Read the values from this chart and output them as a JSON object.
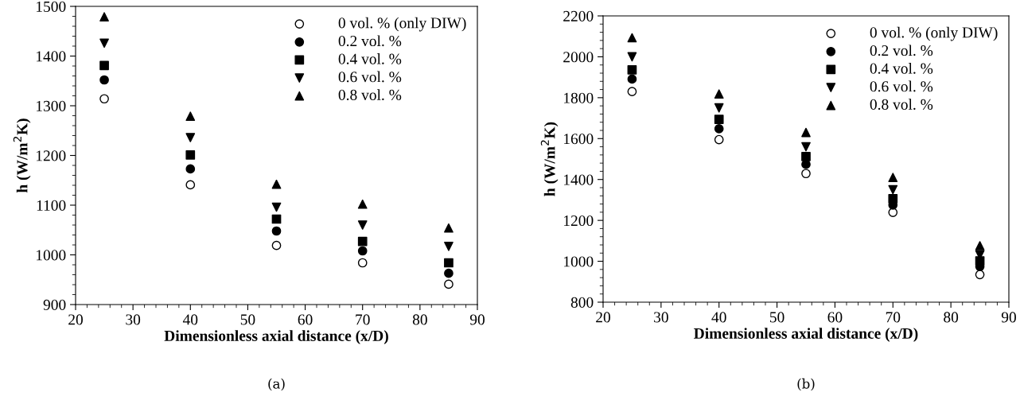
{
  "chart_data": [
    {
      "type": "scatter",
      "xlabel": "Dimensionless axial distance (x/D)",
      "ylabel": "h (W/m$^{2}$K)",
      "annotations": [
        "(a)"
      ],
      "x": [
        25,
        40,
        55,
        70,
        85
      ],
      "xlim": [
        20,
        90
      ],
      "xticks": [
        20,
        30,
        40,
        50,
        60,
        70,
        80,
        90
      ],
      "ylim": [
        900,
        1500
      ],
      "yticks": [
        900,
        1000,
        1100,
        1200,
        1300,
        1400,
        1500
      ],
      "legend": "top right",
      "grid": false,
      "series": [
        {
          "name": "0 vol. % (only DIW)",
          "color": "#ffffff",
          "marker": "circle",
          "values": [
            1314,
            1141,
            1019,
            984,
            941
          ]
        },
        {
          "name": "0.2 vol. %",
          "color": "#000000",
          "marker": "circle",
          "values": [
            1352,
            1173,
            1048,
            1008,
            963
          ]
        },
        {
          "name": "0.4 vol. %",
          "color": "#000000",
          "marker": "square",
          "values": [
            1381,
            1201,
            1072,
            1027,
            984
          ]
        },
        {
          "name": "0.6 vol. %",
          "color": "#000000",
          "marker": "triangle_down",
          "values": [
            1426,
            1236,
            1096,
            1060,
            1017
          ]
        },
        {
          "name": "0.8 vol. %",
          "color": "#000000",
          "marker": "triangle",
          "values": [
            1479,
            1279,
            1142,
            1102,
            1054
          ]
        }
      ]
    },
    {
      "type": "scatter",
      "xlabel": "Dimensionless axial distance (x/D)",
      "ylabel": "h (W/m$^{2}$K)",
      "annotations": [
        "(b)"
      ],
      "x": [
        25,
        40,
        55,
        70,
        85
      ],
      "xlim": [
        20,
        90
      ],
      "xticks": [
        20,
        30,
        40,
        50,
        60,
        70,
        80,
        90
      ],
      "ylim": [
        800,
        2200
      ],
      "yticks": [
        800,
        1000,
        1200,
        1400,
        1600,
        1800,
        2000,
        2200
      ],
      "legend": "top right",
      "grid": false,
      "series": [
        {
          "name": "0 vol. % (only DIW)",
          "color": "#ffffff",
          "marker": "circle",
          "values": [
            1830,
            1595,
            1429,
            1239,
            935
          ]
        },
        {
          "name": "0.2 vol. %",
          "color": "#000000",
          "marker": "circle",
          "values": [
            1891,
            1648,
            1474,
            1275,
            974
          ]
        },
        {
          "name": "0.4 vol. %",
          "color": "#000000",
          "marker": "square",
          "values": [
            1936,
            1694,
            1512,
            1306,
            1002
          ]
        },
        {
          "name": "0.6 vol. %",
          "color": "#000000",
          "marker": "triangle_down",
          "values": [
            2000,
            1750,
            1560,
            1350,
            1031
          ]
        },
        {
          "name": "0.8 vol. %",
          "color": "#000000",
          "marker": "triangle",
          "values": [
            2093,
            1818,
            1630,
            1410,
            1076
          ]
        }
      ]
    }
  ]
}
